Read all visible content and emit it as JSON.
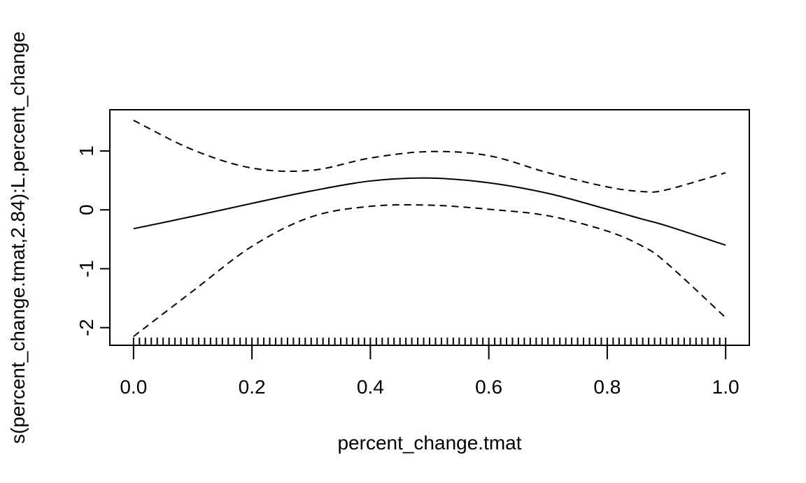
{
  "chart_data": {
    "type": "line",
    "title": "",
    "xlabel": "percent_change.tmat",
    "ylabel": "s(percent_change.tmat,2.84):L.percent_change",
    "xlim": [
      -0.04,
      1.04
    ],
    "ylim": [
      -2.3,
      1.7
    ],
    "x_ticks": [
      "0.0",
      "0.2",
      "0.4",
      "0.6",
      "0.8",
      "1.0"
    ],
    "y_ticks": [
      "-2",
      "-1",
      "0",
      "1"
    ],
    "x": [
      0.0,
      0.1,
      0.2,
      0.3,
      0.4,
      0.5,
      0.6,
      0.7,
      0.8,
      0.86,
      0.9,
      1.0
    ],
    "series": [
      {
        "style": "solid",
        "values": [
          -0.32,
          -0.11,
          0.11,
          0.32,
          0.49,
          0.54,
          0.46,
          0.28,
          0.01,
          -0.16,
          -0.27,
          -0.6
        ]
      },
      {
        "style": "dashed",
        "values": [
          1.52,
          1.02,
          0.71,
          0.67,
          0.88,
          0.99,
          0.92,
          0.63,
          0.39,
          0.31,
          0.34,
          0.63
        ]
      },
      {
        "style": "dashed",
        "values": [
          -2.15,
          -1.38,
          -0.62,
          -0.12,
          0.06,
          0.08,
          0.01,
          -0.1,
          -0.36,
          -0.62,
          -0.9,
          -1.83
        ]
      }
    ],
    "rug": {
      "from": 0.0,
      "to": 1.0,
      "count": 101
    },
    "grid": false,
    "legend": "none"
  }
}
